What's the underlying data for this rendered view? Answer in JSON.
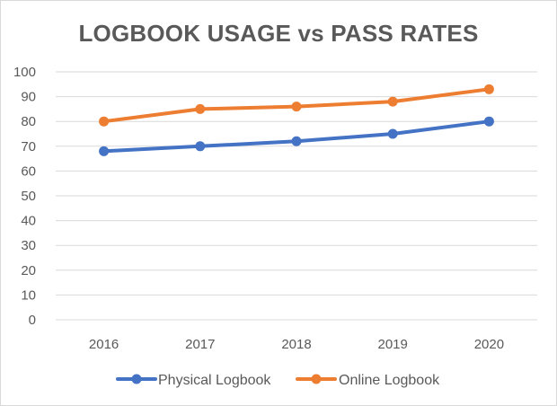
{
  "chart_data": {
    "type": "line",
    "title": "LOGBOOK USAGE vs PASS RATES",
    "categories": [
      "2016",
      "2017",
      "2018",
      "2019",
      "2020"
    ],
    "series": [
      {
        "name": "Physical Logbook",
        "values": [
          68,
          70,
          72,
          75,
          80
        ],
        "color": "#4472c4"
      },
      {
        "name": "Online Logbook",
        "values": [
          80,
          85,
          86,
          88,
          93
        ],
        "color": "#ed7d31"
      }
    ],
    "ylim": [
      0,
      100
    ],
    "y_ticks": [
      "0",
      "10",
      "20",
      "30",
      "40",
      "50",
      "60",
      "70",
      "80",
      "90",
      "100"
    ],
    "grid": true,
    "legend_position": "bottom",
    "colors": {
      "grid": "#d9d9d9",
      "text": "#595959"
    }
  }
}
